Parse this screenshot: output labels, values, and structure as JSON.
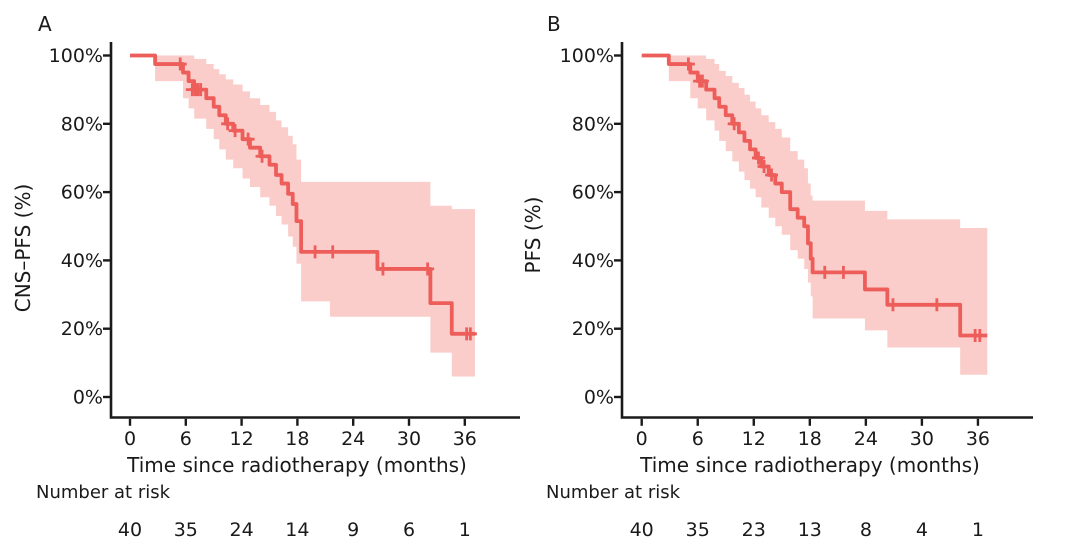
{
  "figure": {
    "background": "#ffffff",
    "colors": {
      "curve": "#ed5e5b",
      "ci_band": "#facdca",
      "axis": "#1a1a1a",
      "text": "#1a1a1a"
    }
  },
  "chart_data": [
    {
      "type": "line",
      "subtype": "kaplan-meier-step",
      "panel_label": "A",
      "ylabel": "CNS–PFS (%)",
      "xlabel": "Time since radiotherapy (months)",
      "risk_label": "Number at risk",
      "xlim": [
        0,
        42
      ],
      "ylim": [
        0,
        100
      ],
      "grid": false,
      "x_ticks": [
        0,
        6,
        12,
        18,
        24,
        30,
        36
      ],
      "x_tick_labels": [
        "0",
        "6",
        "12",
        "18",
        "24",
        "30",
        "36"
      ],
      "y_ticks": [
        0,
        20,
        40,
        60,
        80,
        100
      ],
      "y_tick_labels": [
        "0%",
        "20%",
        "40%",
        "60%",
        "80%",
        "100%"
      ],
      "series": [
        {
          "name": "CNS-PFS",
          "curve_end": 37.1,
          "points": [
            [
              0,
              100
            ],
            [
              2.7,
              97.5
            ],
            [
              5.7,
              95
            ],
            [
              6.3,
              92.5
            ],
            [
              6.9,
              90
            ],
            [
              8.2,
              87.5
            ],
            [
              9.0,
              85
            ],
            [
              9.6,
              82.5
            ],
            [
              10.3,
              80
            ],
            [
              11.1,
              78
            ],
            [
              12.1,
              75.5
            ],
            [
              12.9,
              73
            ],
            [
              14.0,
              70.5
            ],
            [
              15.0,
              68
            ],
            [
              15.7,
              65
            ],
            [
              16.3,
              62.5
            ],
            [
              17.0,
              59.5
            ],
            [
              17.5,
              56.5
            ],
            [
              17.9,
              51.5
            ],
            [
              18.4,
              42.5
            ],
            [
              26.6,
              37.5
            ],
            [
              32.3,
              27.5
            ],
            [
              34.6,
              18.5
            ]
          ],
          "censors": [
            [
              5.4,
              97.5
            ],
            [
              6.7,
              90
            ],
            [
              7.0,
              90
            ],
            [
              7.3,
              90
            ],
            [
              7.6,
              90
            ],
            [
              10.5,
              80
            ],
            [
              11.3,
              78
            ],
            [
              12.7,
              75.5
            ],
            [
              14.2,
              70.5
            ],
            [
              19.9,
              42.5
            ],
            [
              21.8,
              42.5
            ],
            [
              27.2,
              37.5
            ],
            [
              32.0,
              37.5
            ],
            [
              36.2,
              18.5
            ],
            [
              36.6,
              18.5
            ]
          ],
          "ci_upper": [
            [
              2.7,
              100
            ],
            [
              5.7,
              100
            ],
            [
              6.3,
              100
            ],
            [
              6.9,
              99
            ],
            [
              8.2,
              97.5
            ],
            [
              9.0,
              96
            ],
            [
              9.6,
              94.5
            ],
            [
              10.3,
              93
            ],
            [
              11.1,
              91.5
            ],
            [
              12.1,
              89.5
            ],
            [
              12.9,
              87.5
            ],
            [
              14.0,
              85.5
            ],
            [
              15.0,
              83.5
            ],
            [
              15.7,
              81
            ],
            [
              16.3,
              79
            ],
            [
              17.0,
              76.5
            ],
            [
              17.5,
              74
            ],
            [
              17.9,
              69.5
            ],
            [
              18.4,
              63
            ],
            [
              32.3,
              56
            ],
            [
              34.6,
              55
            ]
          ],
          "ci_lower": [
            [
              2.7,
              92.5
            ],
            [
              5.7,
              87.5
            ],
            [
              6.3,
              84.5
            ],
            [
              6.9,
              81.5
            ],
            [
              8.2,
              78.5
            ],
            [
              9.0,
              75.5
            ],
            [
              9.6,
              72.5
            ],
            [
              10.3,
              69.5
            ],
            [
              11.1,
              67
            ],
            [
              12.1,
              64
            ],
            [
              12.9,
              61.5
            ],
            [
              14.0,
              58.5
            ],
            [
              15.0,
              56
            ],
            [
              15.7,
              53
            ],
            [
              16.3,
              50.5
            ],
            [
              17.0,
              47
            ],
            [
              17.5,
              44
            ],
            [
              17.9,
              39
            ],
            [
              18.4,
              28
            ],
            [
              21.5,
              23.5
            ],
            [
              32.3,
              13
            ],
            [
              34.6,
              6
            ]
          ]
        }
      ],
      "number_at_risk": {
        "times": [
          0,
          6,
          12,
          18,
          24,
          30,
          36
        ],
        "counts": [
          "40",
          "35",
          "24",
          "14",
          "9",
          "6",
          "1"
        ]
      }
    },
    {
      "type": "line",
      "subtype": "kaplan-meier-step",
      "panel_label": "B",
      "ylabel": "PFS (%)",
      "xlabel": "Time since radiotherapy (months)",
      "risk_label": "Number at risk",
      "xlim": [
        0,
        42
      ],
      "ylim": [
        0,
        100
      ],
      "grid": false,
      "x_ticks": [
        0,
        6,
        12,
        18,
        24,
        30,
        36
      ],
      "x_tick_labels": [
        "0",
        "6",
        "12",
        "18",
        "24",
        "30",
        "36"
      ],
      "y_ticks": [
        0,
        20,
        40,
        60,
        80,
        100
      ],
      "y_tick_labels": [
        "0%",
        "20%",
        "40%",
        "60%",
        "80%",
        "100%"
      ],
      "series": [
        {
          "name": "PFS",
          "curve_end": 37.0,
          "points": [
            [
              0,
              100
            ],
            [
              2.9,
              97.5
            ],
            [
              5.2,
              95
            ],
            [
              6.0,
              92.5
            ],
            [
              6.9,
              90
            ],
            [
              7.8,
              87.5
            ],
            [
              8.3,
              85
            ],
            [
              9.0,
              82.5
            ],
            [
              9.7,
              80
            ],
            [
              10.4,
              77.5
            ],
            [
              11.0,
              75
            ],
            [
              11.6,
              72.5
            ],
            [
              12.2,
              70
            ],
            [
              12.8,
              67.5
            ],
            [
              13.6,
              65
            ],
            [
              14.3,
              62.5
            ],
            [
              15.0,
              60
            ],
            [
              15.9,
              55
            ],
            [
              16.7,
              52.5
            ],
            [
              17.4,
              50
            ],
            [
              17.8,
              45
            ],
            [
              18.1,
              40.5
            ],
            [
              18.3,
              36.5
            ],
            [
              23.9,
              31.5
            ],
            [
              26.3,
              27
            ],
            [
              34.1,
              18
            ]
          ],
          "censors": [
            [
              5.0,
              97.5
            ],
            [
              6.2,
              92.5
            ],
            [
              6.5,
              92.5
            ],
            [
              9.9,
              80
            ],
            [
              12.5,
              70
            ],
            [
              13.1,
              67.5
            ],
            [
              13.9,
              65
            ],
            [
              19.6,
              36.5
            ],
            [
              21.6,
              36.5
            ],
            [
              26.9,
              27
            ],
            [
              31.6,
              27
            ],
            [
              35.7,
              18
            ],
            [
              36.2,
              18
            ]
          ],
          "ci_upper": [
            [
              2.9,
              100
            ],
            [
              5.2,
              100
            ],
            [
              6.0,
              100
            ],
            [
              6.9,
              99
            ],
            [
              7.8,
              97.5
            ],
            [
              8.3,
              95.5
            ],
            [
              9.0,
              94
            ],
            [
              9.7,
              92
            ],
            [
              10.4,
              90.5
            ],
            [
              11.0,
              88.5
            ],
            [
              11.6,
              86.5
            ],
            [
              12.2,
              84.5
            ],
            [
              12.8,
              82.5
            ],
            [
              13.6,
              80.5
            ],
            [
              14.3,
              78.5
            ],
            [
              15.0,
              76
            ],
            [
              15.9,
              72
            ],
            [
              16.7,
              69.5
            ],
            [
              17.4,
              67
            ],
            [
              17.8,
              62.5
            ],
            [
              18.1,
              59
            ],
            [
              18.3,
              57.5
            ],
            [
              23.9,
              54.5
            ],
            [
              26.3,
              52
            ],
            [
              34.1,
              49.5
            ]
          ],
          "ci_lower": [
            [
              2.9,
              92.5
            ],
            [
              5.2,
              87.5
            ],
            [
              6.0,
              84.5
            ],
            [
              6.9,
              81
            ],
            [
              7.8,
              78
            ],
            [
              8.3,
              75
            ],
            [
              9.0,
              72
            ],
            [
              9.7,
              69
            ],
            [
              10.4,
              66
            ],
            [
              11.0,
              63.5
            ],
            [
              11.6,
              61
            ],
            [
              12.2,
              58.5
            ],
            [
              12.8,
              55.5
            ],
            [
              13.6,
              52.5
            ],
            [
              14.3,
              50
            ],
            [
              15.0,
              47.5
            ],
            [
              15.9,
              43
            ],
            [
              16.7,
              40.5
            ],
            [
              17.4,
              37.5
            ],
            [
              17.8,
              33.5
            ],
            [
              18.1,
              29.5
            ],
            [
              18.3,
              23
            ],
            [
              23.9,
              19.5
            ],
            [
              26.3,
              14.5
            ],
            [
              34.1,
              6.5
            ]
          ]
        }
      ],
      "number_at_risk": {
        "times": [
          0,
          6,
          12,
          18,
          24,
          30,
          36
        ],
        "counts": [
          "40",
          "35",
          "23",
          "13",
          "8",
          "4",
          "1"
        ]
      }
    }
  ]
}
